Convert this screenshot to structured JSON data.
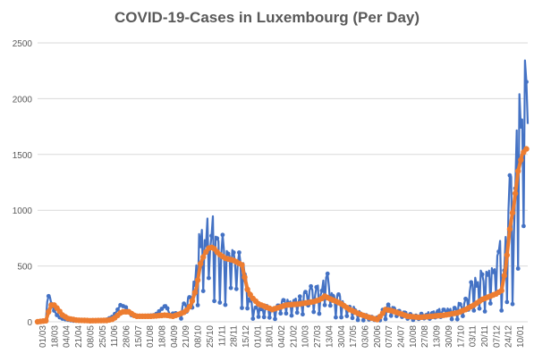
{
  "chart_data": {
    "type": "line",
    "title": "COVID-19-Cases in Luxembourg (Per Day)",
    "xlabel": "",
    "ylabel": "",
    "ylim": [
      0,
      2500
    ],
    "yticks": [
      0,
      500,
      1000,
      1500,
      2000,
      2500
    ],
    "grid": true,
    "legend": "none",
    "x_tick_labels": [
      "01/03",
      "18/03",
      "04/04",
      "21/04",
      "08/05",
      "25/05",
      "11/06",
      "28/06",
      "15/07",
      "01/08",
      "18/08",
      "04/09",
      "21/09",
      "08/10",
      "25/10",
      "11/11",
      "28/11",
      "15/12",
      "01/01",
      "18/01",
      "04/02",
      "21/02",
      "10/03",
      "27/03",
      "13/04",
      "30/04",
      "17/05",
      "03/06",
      "20/06",
      "07/07",
      "24/07",
      "10/08",
      "27/08",
      "13/09",
      "30/09",
      "17/10",
      "03/11",
      "20/11",
      "07/12",
      "24/12",
      "10/01"
    ],
    "colors": {
      "daily": "#4472C4",
      "average": "#ED7D31",
      "grid": "#D9D9D9",
      "text": "#595959"
    },
    "series": [
      {
        "name": "",
        "kind": "daily",
        "key_points": [
          [
            0,
            0
          ],
          [
            12,
            10
          ],
          [
            14,
            180
          ],
          [
            16,
            230
          ],
          [
            18,
            220
          ],
          [
            20,
            160
          ],
          [
            24,
            100
          ],
          [
            28,
            60
          ],
          [
            34,
            30
          ],
          [
            42,
            20
          ],
          [
            52,
            10
          ],
          [
            70,
            10
          ],
          [
            88,
            10
          ],
          [
            100,
            20
          ],
          [
            110,
            50
          ],
          [
            120,
            150
          ],
          [
            128,
            130
          ],
          [
            136,
            60
          ],
          [
            150,
            50
          ],
          [
            170,
            60
          ],
          [
            186,
            150
          ],
          [
            192,
            60
          ],
          [
            198,
            80
          ],
          [
            204,
            70
          ],
          [
            210,
            150
          ],
          [
            216,
            200
          ],
          [
            222,
            250
          ],
          [
            228,
            400
          ],
          [
            234,
            760
          ],
          [
            240,
            860
          ],
          [
            244,
            840
          ],
          [
            250,
            780
          ],
          [
            256,
            860
          ],
          [
            262,
            700
          ],
          [
            268,
            680
          ],
          [
            274,
            640
          ],
          [
            280,
            720
          ],
          [
            286,
            650
          ],
          [
            292,
            560
          ],
          [
            298,
            520
          ],
          [
            306,
            250
          ],
          [
            312,
            150
          ],
          [
            320,
            120
          ],
          [
            330,
            130
          ],
          [
            340,
            120
          ],
          [
            350,
            140
          ],
          [
            360,
            200
          ],
          [
            370,
            200
          ],
          [
            380,
            200
          ],
          [
            390,
            300
          ],
          [
            400,
            280
          ],
          [
            410,
            300
          ],
          [
            416,
            380
          ],
          [
            420,
            390
          ],
          [
            426,
            300
          ],
          [
            432,
            250
          ],
          [
            440,
            200
          ],
          [
            450,
            150
          ],
          [
            460,
            120
          ],
          [
            470,
            80
          ],
          [
            480,
            50
          ],
          [
            490,
            30
          ],
          [
            496,
            50
          ],
          [
            502,
            120
          ],
          [
            508,
            170
          ],
          [
            514,
            140
          ],
          [
            520,
            110
          ],
          [
            530,
            90
          ],
          [
            540,
            60
          ],
          [
            550,
            50
          ],
          [
            560,
            70
          ],
          [
            570,
            80
          ],
          [
            580,
            100
          ],
          [
            590,
            120
          ],
          [
            600,
            110
          ],
          [
            610,
            150
          ],
          [
            620,
            200
          ],
          [
            626,
            300
          ],
          [
            632,
            350
          ],
          [
            640,
            400
          ],
          [
            648,
            450
          ],
          [
            656,
            500
          ],
          [
            664,
            600
          ],
          [
            670,
            650
          ],
          [
            675,
            380
          ],
          [
            680,
            1100
          ],
          [
            685,
            1280
          ],
          [
            690,
            800
          ],
          [
            695,
            2130
          ],
          [
            700,
            1800
          ],
          [
            704,
            2320
          ],
          [
            708,
            1900
          ]
        ]
      },
      {
        "name": "",
        "kind": "7-day average",
        "key_points": [
          [
            0,
            0
          ],
          [
            12,
            10
          ],
          [
            16,
            90
          ],
          [
            20,
            150
          ],
          [
            24,
            150
          ],
          [
            30,
            110
          ],
          [
            36,
            60
          ],
          [
            44,
            30
          ],
          [
            56,
            15
          ],
          [
            76,
            10
          ],
          [
            100,
            12
          ],
          [
            110,
            25
          ],
          [
            122,
            90
          ],
          [
            132,
            90
          ],
          [
            142,
            50
          ],
          [
            166,
            50
          ],
          [
            186,
            60
          ],
          [
            196,
            50
          ],
          [
            206,
            70
          ],
          [
            214,
            90
          ],
          [
            222,
            150
          ],
          [
            230,
            300
          ],
          [
            236,
            520
          ],
          [
            242,
            610
          ],
          [
            248,
            660
          ],
          [
            254,
            670
          ],
          [
            262,
            610
          ],
          [
            272,
            570
          ],
          [
            284,
            550
          ],
          [
            296,
            510
          ],
          [
            304,
            290
          ],
          [
            310,
            220
          ],
          [
            320,
            160
          ],
          [
            340,
            110
          ],
          [
            360,
            150
          ],
          [
            380,
            160
          ],
          [
            400,
            180
          ],
          [
            410,
            200
          ],
          [
            416,
            230
          ],
          [
            422,
            210
          ],
          [
            430,
            190
          ],
          [
            440,
            160
          ],
          [
            452,
            110
          ],
          [
            466,
            70
          ],
          [
            480,
            40
          ],
          [
            492,
            20
          ],
          [
            498,
            60
          ],
          [
            504,
            110
          ],
          [
            512,
            100
          ],
          [
            522,
            80
          ],
          [
            536,
            50
          ],
          [
            552,
            40
          ],
          [
            572,
            50
          ],
          [
            590,
            60
          ],
          [
            608,
            80
          ],
          [
            620,
            110
          ],
          [
            632,
            150
          ],
          [
            644,
            200
          ],
          [
            656,
            230
          ],
          [
            664,
            250
          ],
          [
            672,
            280
          ],
          [
            678,
            480
          ],
          [
            684,
            830
          ],
          [
            690,
            1050
          ],
          [
            696,
            1350
          ],
          [
            702,
            1500
          ],
          [
            706,
            1540
          ],
          [
            708,
            1550
          ]
        ]
      }
    ]
  }
}
